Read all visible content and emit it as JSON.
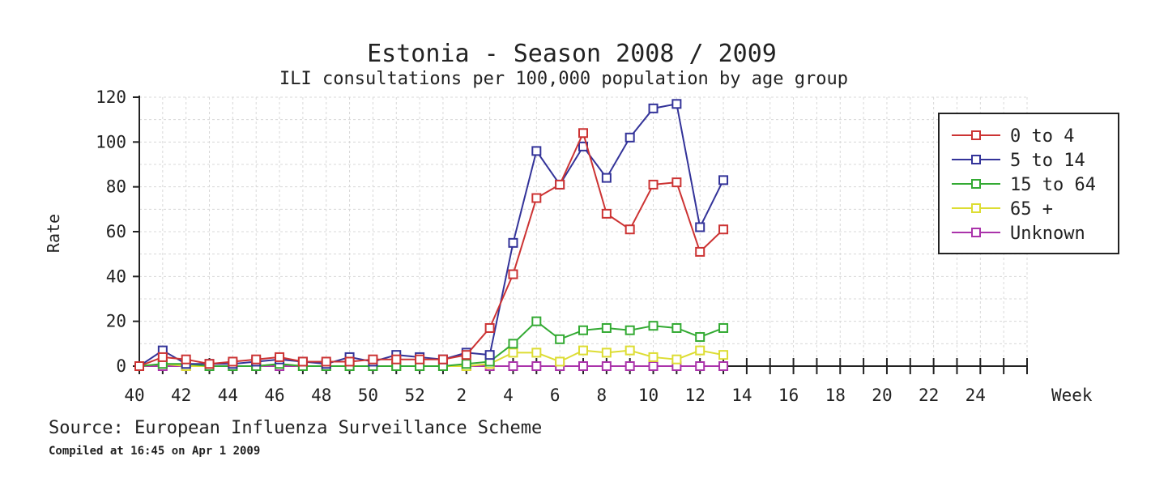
{
  "chart_data": {
    "type": "line",
    "title": "Estonia - Season 2008 / 2009",
    "subtitle": "ILI consultations per 100,000 population by age group",
    "xlabel": "Week",
    "ylabel": "Rate",
    "ylim": [
      0,
      120
    ],
    "yticks": [
      0,
      20,
      40,
      60,
      80,
      100,
      120
    ],
    "xtick_labels": [
      "40",
      "42",
      "44",
      "46",
      "48",
      "50",
      "52",
      "2",
      "4",
      "6",
      "8",
      "10",
      "12",
      "14",
      "16",
      "18",
      "20",
      "22",
      "24"
    ],
    "x_weeks": [
      "40",
      "41",
      "42",
      "43",
      "44",
      "45",
      "46",
      "47",
      "48",
      "49",
      "50",
      "51",
      "52",
      "1",
      "2",
      "3",
      "4",
      "5",
      "6",
      "7",
      "8",
      "9",
      "10",
      "11",
      "12",
      "13"
    ],
    "grid": true,
    "legend_position": "top-right",
    "series": [
      {
        "name": "0 to 4",
        "color": "#cc3333",
        "values": [
          0,
          4,
          3,
          1,
          2,
          3,
          4,
          2,
          2,
          2,
          3,
          3,
          3,
          3,
          5,
          17,
          41,
          75,
          81,
          104,
          68,
          61,
          81,
          82,
          51,
          61
        ]
      },
      {
        "name": "5 to 14",
        "color": "#333399",
        "values": [
          0,
          7,
          1,
          1,
          1,
          2,
          3,
          2,
          1,
          4,
          2,
          5,
          4,
          3,
          6,
          5,
          55,
          96,
          81,
          98,
          84,
          102,
          115,
          117,
          62,
          83
        ]
      },
      {
        "name": "15 to 64",
        "color": "#33aa33",
        "values": [
          0,
          1,
          1,
          0,
          0,
          0,
          1,
          0,
          0,
          0,
          0,
          0,
          0,
          0,
          1,
          2,
          10,
          20,
          12,
          16,
          17,
          16,
          18,
          17,
          13,
          17
        ]
      },
      {
        "name": "65 +",
        "color": "#dddd33",
        "values": [
          0,
          1,
          0,
          0,
          0,
          0,
          1,
          0,
          0,
          0,
          0,
          0,
          0,
          0,
          0,
          1,
          6,
          6,
          2,
          7,
          6,
          7,
          4,
          3,
          7,
          5
        ]
      },
      {
        "name": "Unknown",
        "color": "#aa33aa",
        "values": [
          0,
          0,
          0,
          0,
          0,
          0,
          0,
          0,
          0,
          0,
          0,
          0,
          0,
          0,
          0,
          0,
          0,
          0,
          0,
          0,
          0,
          0,
          0,
          0,
          0,
          0
        ]
      }
    ]
  },
  "footer": {
    "source": "Source: European Influenza Surveillance Scheme",
    "compiled": "Compiled at 16:45 on Apr 1 2009"
  }
}
